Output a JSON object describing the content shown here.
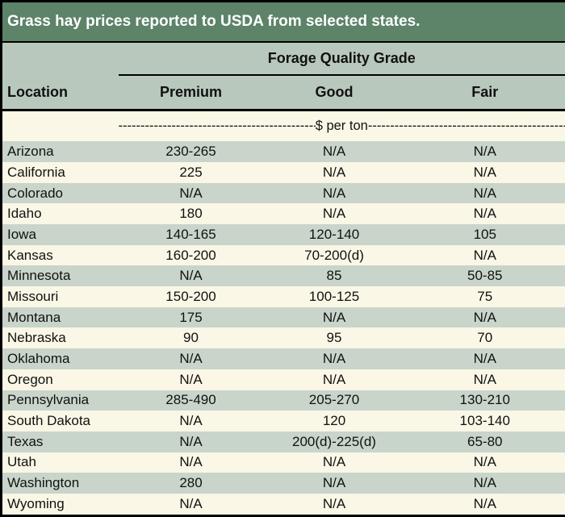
{
  "chart_data": {
    "type": "table",
    "title": "Grass hay prices reported to USDA from selected states.",
    "group_header": "Forage Quality Grade",
    "columns": [
      "Location",
      "Premium",
      "Good",
      "Fair"
    ],
    "unit": "$ per ton",
    "rows": [
      [
        "Arizona",
        "230-265",
        "N/A",
        "N/A"
      ],
      [
        "California",
        "225",
        "N/A",
        "N/A"
      ],
      [
        "Colorado",
        "N/A",
        "N/A",
        "N/A"
      ],
      [
        "Idaho",
        "180",
        "N/A",
        "N/A"
      ],
      [
        "Iowa",
        "140-165",
        "120-140",
        "105"
      ],
      [
        "Kansas",
        "160-200",
        "70-200(d)",
        "N/A"
      ],
      [
        "Minnesota",
        "N/A",
        "85",
        "50-85"
      ],
      [
        "Missouri",
        "150-200",
        "100-125",
        "75"
      ],
      [
        "Montana",
        "175",
        "N/A",
        "N/A"
      ],
      [
        "Nebraska",
        "90",
        "95",
        "70"
      ],
      [
        "Oklahoma",
        "N/A",
        "N/A",
        "N/A"
      ],
      [
        "Oregon",
        "N/A",
        "N/A",
        "N/A"
      ],
      [
        "Pennsylvania",
        "285-490",
        "205-270",
        "130-210"
      ],
      [
        "South Dakota",
        "N/A",
        "120",
        "103-140"
      ],
      [
        "Texas",
        "N/A",
        "200(d)-225(d)",
        "65-80"
      ],
      [
        "Utah",
        "N/A",
        "N/A",
        "N/A"
      ],
      [
        "Washington",
        "280",
        "N/A",
        "N/A"
      ],
      [
        "Wyoming",
        "N/A",
        "N/A",
        "N/A"
      ]
    ]
  },
  "unit_row": {
    "dash_fill": "----------------------------------------------------------------------",
    "label": "$ per ton"
  },
  "colors": {
    "title_bar_green": "#5d8369",
    "header_sage": "#b9c8bc",
    "row_green": "#c9d5cb",
    "row_cream": "#faf7e6",
    "border_black": "#000000",
    "title_text": "#ffffff",
    "body_text": "#111111"
  }
}
